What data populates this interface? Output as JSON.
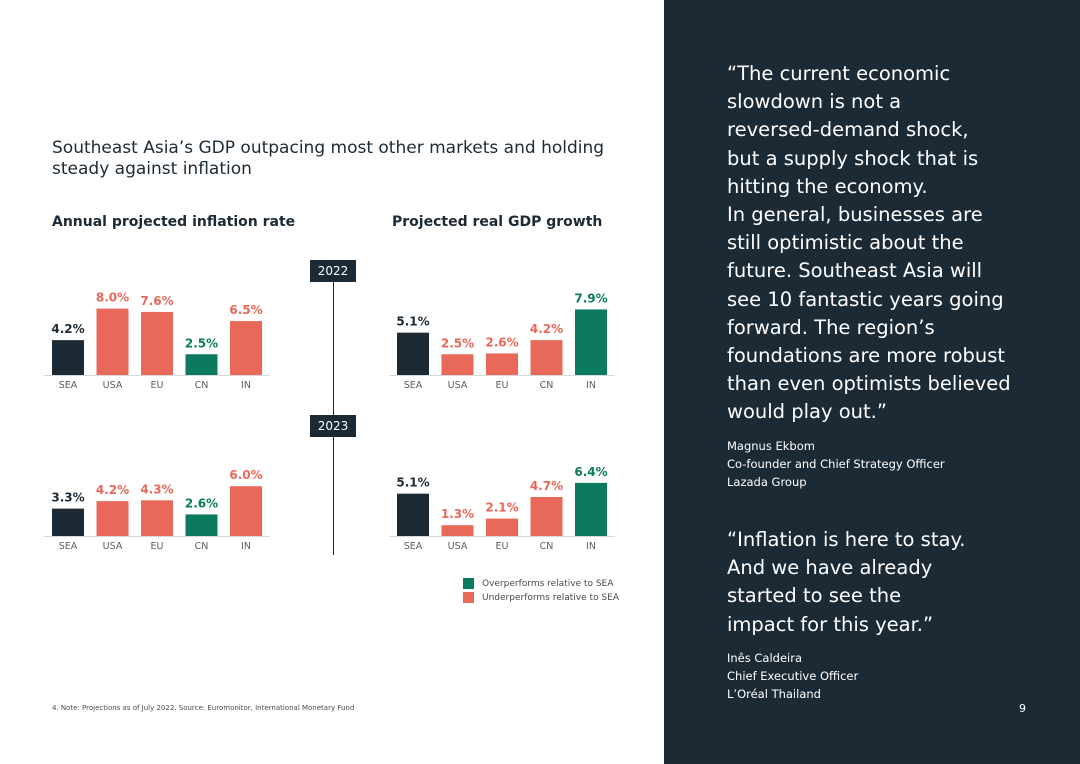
{
  "title": "Southeast Asia’s GDP outpacing most other markets and holding steady against inflation",
  "colors": {
    "base": "#1c2a35",
    "over": "#0c7a5e",
    "under": "#e8685a",
    "dark_panel": "#1c2a35"
  },
  "chart_data": [
    {
      "type": "bar",
      "title": "Annual projected inflation rate",
      "year": "2022",
      "categories": [
        "SEA",
        "USA",
        "EU",
        "CN",
        "IN"
      ],
      "values": [
        4.2,
        8.0,
        7.6,
        2.5,
        6.5
      ],
      "labels": [
        "4.2%",
        "8.0%",
        "7.6%",
        "2.5%",
        "6.5%"
      ],
      "status": [
        "base",
        "under",
        "under",
        "over",
        "under"
      ]
    },
    {
      "type": "bar",
      "title": "Projected real GDP growth",
      "year": "2022",
      "categories": [
        "SEA",
        "USA",
        "EU",
        "CN",
        "IN"
      ],
      "values": [
        5.1,
        2.5,
        2.6,
        4.2,
        7.9
      ],
      "labels": [
        "5.1%",
        "2.5%",
        "2.6%",
        "4.2%",
        "7.9%"
      ],
      "status": [
        "base",
        "under",
        "under",
        "under",
        "over"
      ]
    },
    {
      "type": "bar",
      "title": "Annual projected inflation rate",
      "year": "2023",
      "categories": [
        "SEA",
        "USA",
        "EU",
        "CN",
        "IN"
      ],
      "values": [
        3.3,
        4.2,
        4.3,
        2.6,
        6.0
      ],
      "labels": [
        "3.3%",
        "4.2%",
        "4.3%",
        "2.6%",
        "6.0%"
      ],
      "status": [
        "base",
        "under",
        "under",
        "over",
        "under"
      ]
    },
    {
      "type": "bar",
      "title": "Projected real GDP growth",
      "year": "2023",
      "categories": [
        "SEA",
        "USA",
        "EU",
        "CN",
        "IN"
      ],
      "values": [
        5.1,
        1.3,
        2.1,
        4.7,
        6.4
      ],
      "labels": [
        "5.1%",
        "1.3%",
        "2.1%",
        "4.7%",
        "6.4%"
      ],
      "status": [
        "base",
        "under",
        "under",
        "under",
        "over"
      ]
    }
  ],
  "subheads": {
    "inflation": "Annual projected inflation rate",
    "gdp": "Projected real GDP growth"
  },
  "years": {
    "y2022": "2022",
    "y2023": "2023"
  },
  "legend": {
    "over": "Overperforms relative to SEA",
    "under": "Underperforms relative to SEA"
  },
  "footnote": "4. Note: Projections as of July 2022. Source: Euromonitor, International Monetary Fund",
  "quotes": [
    {
      "lines": [
        "“The current economic",
        "slowdown is not a",
        "reversed-demand shock,",
        "but a supply shock that is",
        "hitting the economy.",
        "In general, businesses are",
        "still optimistic about the",
        "future. Southeast Asia will",
        "see 10 fantastic years going",
        "forward. The region’s",
        "foundations are more robust",
        "than even optimists believed",
        "would play out.”"
      ],
      "name": "Magnus Ekbom",
      "role": "Co-founder and Chief Strategy Officer",
      "org": "Lazada Group"
    },
    {
      "lines": [
        "“Inflation is here to stay.",
        "And we have already",
        "started to see the",
        "impact for this year.”"
      ],
      "name": "Inês Caldeira",
      "role": "Chief Executive Officer",
      "org": "L’Oréal Thailand"
    }
  ],
  "page_number": "9"
}
